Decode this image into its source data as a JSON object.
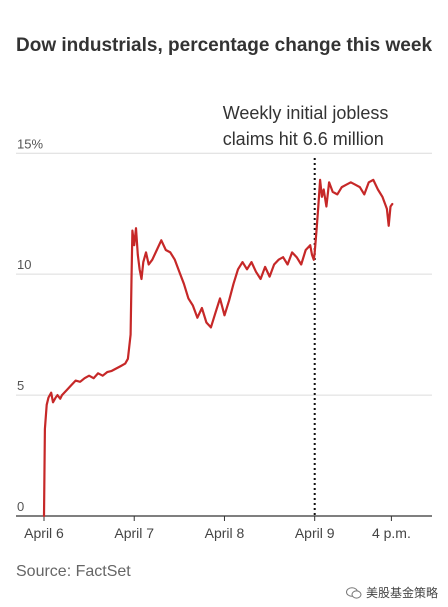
{
  "chart_data": {
    "type": "line",
    "title": "Dow industrials, percentage change this week",
    "source": "Source: FactSet",
    "yticks": [
      {
        "value": 0,
        "label": "0"
      },
      {
        "value": 5,
        "label": "5"
      },
      {
        "value": 10,
        "label": "10"
      },
      {
        "value": 15,
        "label": "15%"
      }
    ],
    "ylim": [
      0,
      15.3
    ],
    "xlim": [
      0,
      4.3
    ],
    "xticks": [
      {
        "value": 0,
        "label": "April 6"
      },
      {
        "value": 1,
        "label": "April 7"
      },
      {
        "value": 2,
        "label": "April 8"
      },
      {
        "value": 3,
        "label": "April 9"
      },
      {
        "value": 3.85,
        "label": "4 p.m."
      }
    ],
    "annotation": {
      "x": 3,
      "lines": [
        "Weekly initial jobless",
        "claims hit 6.6 million"
      ]
    },
    "line_color": "#c62828",
    "series": [
      {
        "x": [
          0,
          0.01,
          0.02,
          0.03,
          0.05,
          0.08,
          0.1,
          0.13,
          0.15,
          0.18,
          0.2,
          0.25,
          0.3,
          0.35,
          0.4,
          0.45,
          0.5,
          0.55,
          0.6,
          0.65,
          0.7,
          0.75,
          0.8,
          0.85,
          0.9,
          0.93,
          0.96,
          0.97,
          0.98,
          1.0,
          1.02,
          1.04,
          1.06,
          1.08,
          1.1,
          1.13,
          1.16,
          1.2,
          1.25,
          1.3,
          1.35,
          1.4,
          1.45,
          1.5,
          1.55,
          1.6,
          1.65,
          1.7,
          1.75,
          1.8,
          1.85,
          1.9,
          1.95,
          2.0,
          2.05,
          2.1,
          2.15,
          2.2,
          2.25,
          2.3,
          2.35,
          2.4,
          2.45,
          2.5,
          2.55,
          2.6,
          2.65,
          2.7,
          2.75,
          2.8,
          2.85,
          2.9,
          2.95,
          2.97,
          2.99,
          3.0,
          3.02,
          3.04,
          3.06,
          3.08,
          3.1,
          3.13,
          3.16,
          3.2,
          3.25,
          3.3,
          3.35,
          3.4,
          3.45,
          3.5,
          3.55,
          3.6,
          3.65,
          3.7,
          3.75,
          3.78,
          3.8,
          3.82,
          3.84,
          3.86
        ],
        "y": [
          0,
          3.6,
          4.1,
          4.6,
          4.9,
          5.1,
          4.7,
          4.9,
          5.0,
          4.85,
          5.0,
          5.2,
          5.4,
          5.6,
          5.55,
          5.7,
          5.8,
          5.7,
          5.9,
          5.8,
          5.95,
          6.0,
          6.1,
          6.2,
          6.3,
          6.5,
          7.5,
          9.8,
          11.8,
          11.2,
          11.9,
          10.8,
          10.2,
          9.8,
          10.5,
          10.9,
          10.4,
          10.6,
          11.0,
          11.4,
          11.0,
          10.9,
          10.6,
          10.1,
          9.6,
          9.0,
          8.7,
          8.2,
          8.6,
          8.0,
          7.8,
          8.4,
          9.0,
          8.3,
          8.9,
          9.6,
          10.2,
          10.5,
          10.2,
          10.5,
          10.1,
          9.8,
          10.3,
          9.9,
          10.4,
          10.6,
          10.7,
          10.4,
          10.9,
          10.7,
          10.4,
          11.0,
          11.2,
          10.8,
          10.6,
          10.9,
          11.8,
          12.8,
          13.9,
          13.2,
          13.5,
          12.8,
          13.8,
          13.4,
          13.3,
          13.6,
          13.7,
          13.8,
          13.7,
          13.6,
          13.3,
          13.8,
          13.9,
          13.5,
          13.2,
          12.9,
          12.7,
          12.0,
          12.8,
          12.9
        ]
      }
    ],
    "grid": true,
    "legend": "none"
  },
  "watermark": {
    "text": "美股基金策略",
    "icon": "wechat-icon"
  }
}
